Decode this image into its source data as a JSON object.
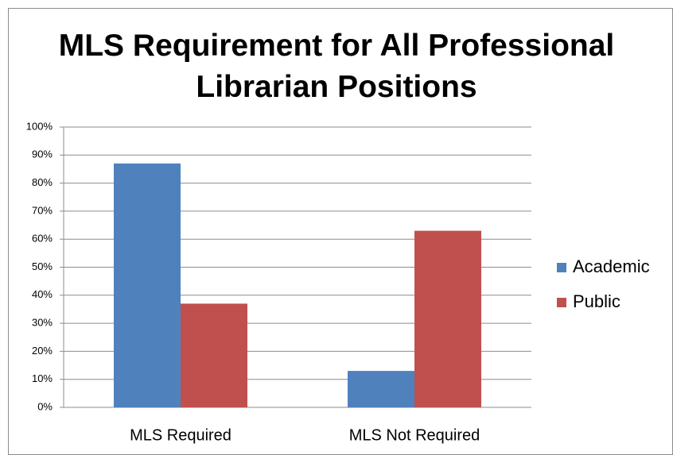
{
  "chart_data": {
    "type": "bar",
    "title": "MLS Requirement for All Professional Librarian Positions",
    "categories": [
      "MLS Required",
      "MLS Not Required"
    ],
    "series": [
      {
        "name": "Academic",
        "color": "#4f81bd",
        "values": [
          87,
          13
        ]
      },
      {
        "name": "Public",
        "color": "#c0504d",
        "values": [
          37,
          63
        ]
      }
    ],
    "ylim": [
      0,
      100
    ],
    "yticks": [
      {
        "value": 0,
        "label": "0%"
      },
      {
        "value": 10,
        "label": "10%"
      },
      {
        "value": 20,
        "label": "20%"
      },
      {
        "value": 30,
        "label": "30%"
      },
      {
        "value": 40,
        "label": "40%"
      },
      {
        "value": 50,
        "label": "50%"
      },
      {
        "value": 60,
        "label": "60%"
      },
      {
        "value": 70,
        "label": "70%"
      },
      {
        "value": 80,
        "label": "80%"
      },
      {
        "value": 90,
        "label": "90%"
      },
      {
        "value": 100,
        "label": "100%"
      }
    ],
    "grid": true,
    "legend": "right"
  }
}
